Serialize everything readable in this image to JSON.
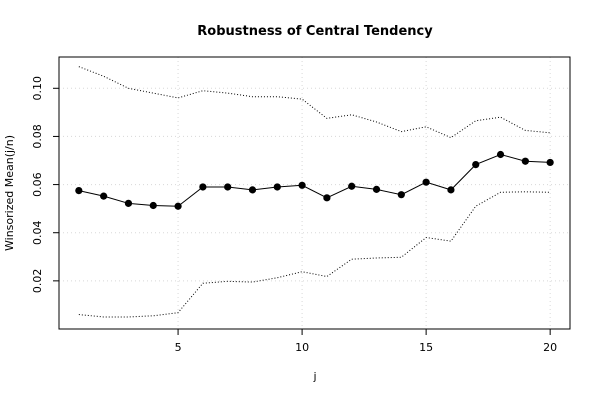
{
  "chart_data": {
    "type": "line",
    "title": "Robustness of Central Tendency",
    "xlabel": "j",
    "ylabel": "Winsorized Mean(j/n)",
    "xlim": [
      0.2,
      20.8
    ],
    "ylim": [
      0.0,
      0.113
    ],
    "x_ticks": [
      5,
      10,
      15,
      20
    ],
    "y_ticks": [
      0.02,
      0.04,
      0.06,
      0.08,
      0.1
    ],
    "x_tick_labels": [
      "5",
      "10",
      "15",
      "20"
    ],
    "y_tick_labels": [
      "0.02",
      "0.04",
      "0.06",
      "0.08",
      "0.10"
    ],
    "grid": true,
    "x": [
      1,
      2,
      3,
      4,
      5,
      6,
      7,
      8,
      9,
      10,
      11,
      12,
      13,
      14,
      15,
      16,
      17,
      18,
      19,
      20
    ],
    "series": [
      {
        "values": [
          0.0575,
          0.0552,
          0.0522,
          0.0513,
          0.051,
          0.059,
          0.059,
          0.0578,
          0.059,
          0.0597,
          0.0545,
          0.0593,
          0.058,
          0.0558,
          0.061,
          0.0578,
          0.0683,
          0.0725,
          0.0697,
          0.0692
        ],
        "style": "line-with-points"
      },
      {
        "values": [
          0.109,
          0.105,
          0.1,
          0.098,
          0.096,
          0.099,
          0.098,
          0.0965,
          0.0965,
          0.0955,
          0.0875,
          0.089,
          0.086,
          0.082,
          0.084,
          0.0795,
          0.0865,
          0.088,
          0.0825,
          0.0815
        ],
        "style": "dotted"
      },
      {
        "values": [
          0.006,
          0.005,
          0.005,
          0.0055,
          0.0068,
          0.019,
          0.0198,
          0.0195,
          0.0213,
          0.0238,
          0.0218,
          0.029,
          0.0295,
          0.0298,
          0.038,
          0.0365,
          0.051,
          0.0568,
          0.057,
          0.0568
        ],
        "style": "dotted"
      }
    ]
  }
}
